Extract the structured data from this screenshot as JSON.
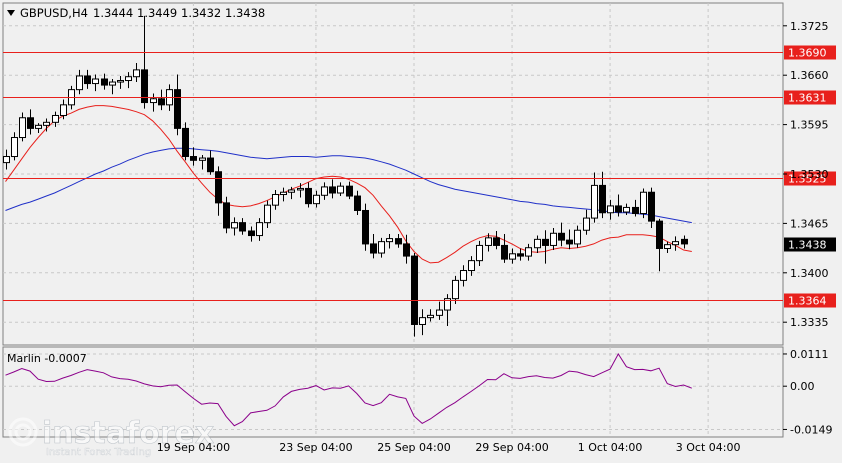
{
  "header": {
    "symbol": "GBPUSD,H4",
    "open": "1.3444",
    "high": "1.3449",
    "low": "1.3432",
    "close": "1.3438"
  },
  "indicator": {
    "label": "Marlin -0.0007"
  },
  "watermark": {
    "text": "instaforex",
    "tagline": "Instant Forex Trading"
  },
  "colors": {
    "background": "#f0f0f0",
    "grid": "#c8c8c8",
    "candle": "#000000",
    "level": "#e8201c",
    "ma_fast": "#e8201c",
    "ma_slow": "#2030c8",
    "marlin": "#8b008b",
    "border": "#808080"
  },
  "chart_data": [
    {
      "type": "candlestick",
      "title": "GBPUSD,H4",
      "ylim": [
        1.3305,
        1.3755
      ],
      "y_ticks": [
        "1.3725",
        "1.3660",
        "1.3595",
        "1.3530",
        "1.3465",
        "1.3400",
        "1.3335"
      ],
      "x_ticks": [
        "19 Sep 04:00",
        "23 Sep 04:00",
        "25 Sep 04:00",
        "29 Sep 04:00",
        "1 Oct 04:00",
        "3 Oct 04:00"
      ],
      "price_label": "1.3438",
      "levels": [
        {
          "value": 1.369,
          "label": "1.3690"
        },
        {
          "value": 1.3631,
          "label": "1.3631"
        },
        {
          "value": 1.3525,
          "label": "1.3525"
        },
        {
          "value": 1.3364,
          "label": "1.3364"
        }
      ],
      "candles": [
        [
          1.3545,
          1.3562,
          1.3536,
          1.3553
        ],
        [
          1.3553,
          1.3585,
          1.3548,
          1.3578
        ],
        [
          1.3578,
          1.3611,
          1.3573,
          1.3604
        ],
        [
          1.3604,
          1.3615,
          1.3582,
          1.359
        ],
        [
          1.359,
          1.3597,
          1.3584,
          1.3594
        ],
        [
          1.3594,
          1.3603,
          1.3586,
          1.3598
        ],
        [
          1.3598,
          1.3612,
          1.3592,
          1.3607
        ],
        [
          1.3607,
          1.3628,
          1.3602,
          1.3621
        ],
        [
          1.3621,
          1.3646,
          1.3615,
          1.3641
        ],
        [
          1.3641,
          1.3667,
          1.3635,
          1.3659
        ],
        [
          1.3659,
          1.3667,
          1.3642,
          1.3649
        ],
        [
          1.3649,
          1.3661,
          1.3639,
          1.3655
        ],
        [
          1.3655,
          1.3662,
          1.3641,
          1.3647
        ],
        [
          1.3647,
          1.3655,
          1.3635,
          1.3651
        ],
        [
          1.3651,
          1.3659,
          1.3642,
          1.3653
        ],
        [
          1.3653,
          1.3664,
          1.3643,
          1.3658
        ],
        [
          1.3658,
          1.3676,
          1.3651,
          1.3667
        ],
        [
          1.3667,
          1.3738,
          1.3616,
          1.3624
        ],
        [
          1.3624,
          1.3636,
          1.3612,
          1.3629
        ],
        [
          1.3629,
          1.3641,
          1.3614,
          1.3621
        ],
        [
          1.3621,
          1.3648,
          1.3613,
          1.3641
        ],
        [
          1.3641,
          1.3661,
          1.3581,
          1.359
        ],
        [
          1.359,
          1.3598,
          1.3548,
          1.3553
        ],
        [
          1.3553,
          1.3565,
          1.3541,
          1.3548
        ],
        [
          1.3548,
          1.3555,
          1.3536,
          1.3551
        ],
        [
          1.3551,
          1.3561,
          1.3529,
          1.3533
        ],
        [
          1.3533,
          1.354,
          1.3475,
          1.3492
        ],
        [
          1.3492,
          1.35,
          1.3452,
          1.3459
        ],
        [
          1.3459,
          1.3473,
          1.3449,
          1.3466
        ],
        [
          1.3466,
          1.3472,
          1.345,
          1.3455
        ],
        [
          1.3455,
          1.3461,
          1.3441,
          1.3449
        ],
        [
          1.3449,
          1.3472,
          1.3442,
          1.3466
        ],
        [
          1.3466,
          1.3495,
          1.3459,
          1.3489
        ],
        [
          1.3489,
          1.3509,
          1.3483,
          1.3503
        ],
        [
          1.3503,
          1.3512,
          1.3494,
          1.3506
        ],
        [
          1.3506,
          1.3513,
          1.3497,
          1.3509
        ],
        [
          1.3509,
          1.3518,
          1.3499,
          1.3511
        ],
        [
          1.3511,
          1.3519,
          1.3486,
          1.3491
        ],
        [
          1.3491,
          1.3508,
          1.3486,
          1.3502
        ],
        [
          1.3502,
          1.3519,
          1.3496,
          1.3513
        ],
        [
          1.3513,
          1.3523,
          1.3498,
          1.3505
        ],
        [
          1.3505,
          1.3519,
          1.3501,
          1.3514
        ],
        [
          1.3514,
          1.352,
          1.3497,
          1.3501
        ],
        [
          1.3501,
          1.3508,
          1.3476,
          1.3482
        ],
        [
          1.3482,
          1.3491,
          1.3429,
          1.3438
        ],
        [
          1.3438,
          1.3451,
          1.3419,
          1.3426
        ],
        [
          1.3426,
          1.3446,
          1.342,
          1.3441
        ],
        [
          1.3441,
          1.3451,
          1.3432,
          1.3445
        ],
        [
          1.3445,
          1.3451,
          1.3433,
          1.3438
        ],
        [
          1.3438,
          1.345,
          1.3412,
          1.3422
        ],
        [
          1.3422,
          1.3426,
          1.3316,
          1.3332
        ],
        [
          1.3332,
          1.3352,
          1.3318,
          1.3341
        ],
        [
          1.3341,
          1.3352,
          1.3336,
          1.3344
        ],
        [
          1.3344,
          1.3362,
          1.3338,
          1.3351
        ],
        [
          1.3351,
          1.3372,
          1.333,
          1.3366
        ],
        [
          1.3366,
          1.3396,
          1.3359,
          1.339
        ],
        [
          1.339,
          1.341,
          1.3382,
          1.3403
        ],
        [
          1.3403,
          1.3422,
          1.3396,
          1.3416
        ],
        [
          1.3416,
          1.3442,
          1.3409,
          1.3436
        ],
        [
          1.3436,
          1.3452,
          1.3428,
          1.3446
        ],
        [
          1.3446,
          1.3455,
          1.3431,
          1.3436
        ],
        [
          1.3436,
          1.3451,
          1.3413,
          1.3418
        ],
        [
          1.3418,
          1.3432,
          1.3412,
          1.3425
        ],
        [
          1.3425,
          1.3432,
          1.3416,
          1.3422
        ],
        [
          1.3422,
          1.3438,
          1.3416,
          1.3433
        ],
        [
          1.3433,
          1.3449,
          1.3426,
          1.3444
        ],
        [
          1.3444,
          1.3456,
          1.3412,
          1.3436
        ],
        [
          1.3436,
          1.3459,
          1.343,
          1.3452
        ],
        [
          1.3452,
          1.3466,
          1.3435,
          1.3443
        ],
        [
          1.3443,
          1.3457,
          1.3431,
          1.3438
        ],
        [
          1.3438,
          1.3462,
          1.3433,
          1.3456
        ],
        [
          1.3456,
          1.3483,
          1.345,
          1.3472
        ],
        [
          1.3472,
          1.3532,
          1.3466,
          1.3515
        ],
        [
          1.3515,
          1.3533,
          1.3472,
          1.3479
        ],
        [
          1.3479,
          1.3496,
          1.347,
          1.3488
        ],
        [
          1.3488,
          1.3503,
          1.3474,
          1.348
        ],
        [
          1.348,
          1.3491,
          1.3476,
          1.3486
        ],
        [
          1.3486,
          1.3496,
          1.3474,
          1.3478
        ],
        [
          1.3478,
          1.3511,
          1.3472,
          1.3506
        ],
        [
          1.3506,
          1.3512,
          1.3459,
          1.3468
        ],
        [
          1.3468,
          1.3471,
          1.3402,
          1.3432
        ],
        [
          1.3432,
          1.3441,
          1.3426,
          1.3437
        ],
        [
          1.3437,
          1.3448,
          1.3429,
          1.3441
        ],
        [
          1.3444,
          1.3449,
          1.3432,
          1.3438
        ]
      ],
      "ma_fast": [
        1.352,
        1.3535,
        1.355,
        1.3565,
        1.3578,
        1.359,
        1.36,
        1.3606,
        1.361,
        1.3615,
        1.3618,
        1.362,
        1.362,
        1.3619,
        1.3617,
        1.3615,
        1.3612,
        1.3608,
        1.36,
        1.3589,
        1.3576,
        1.356,
        1.3546,
        1.3531,
        1.3518,
        1.3506,
        1.3497,
        1.349,
        1.3488,
        1.3487,
        1.3488,
        1.3491,
        1.3495,
        1.35,
        1.3505,
        1.351,
        1.3514,
        1.3519,
        1.3524,
        1.3526,
        1.3527,
        1.3526,
        1.3523,
        1.3518,
        1.3512,
        1.3502,
        1.3488,
        1.3475,
        1.346,
        1.3442,
        1.3428,
        1.3418,
        1.3413,
        1.3414,
        1.342,
        1.3427,
        1.3435,
        1.3441,
        1.3446,
        1.3449,
        1.3448,
        1.3443,
        1.3438,
        1.3432,
        1.3428,
        1.3427,
        1.3428,
        1.3431,
        1.3433,
        1.3432,
        1.3433,
        1.3435,
        1.3438,
        1.3443,
        1.3446,
        1.3447,
        1.345,
        1.345,
        1.345,
        1.3449,
        1.3447,
        1.3441,
        1.3436,
        1.343,
        1.3428
      ],
      "ma_slow": [
        1.3482,
        1.3486,
        1.349,
        1.3493,
        1.3497,
        1.3501,
        1.3505,
        1.351,
        1.3515,
        1.352,
        1.3525,
        1.353,
        1.3534,
        1.3539,
        1.3543,
        1.3548,
        1.3552,
        1.3556,
        1.3559,
        1.3561,
        1.3563,
        1.3564,
        1.3564,
        1.3563,
        1.3562,
        1.3561,
        1.356,
        1.3558,
        1.3556,
        1.3554,
        1.3552,
        1.3551,
        1.355,
        1.3551,
        1.3552,
        1.3553,
        1.3553,
        1.3553,
        1.3552,
        1.3553,
        1.3554,
        1.3554,
        1.3553,
        1.3552,
        1.3551,
        1.3549,
        1.3546,
        1.3543,
        1.3539,
        1.3535,
        1.353,
        1.3525,
        1.352,
        1.3516,
        1.3513,
        1.351,
        1.3508,
        1.3506,
        1.3504,
        1.3502,
        1.35,
        1.3498,
        1.3496,
        1.3494,
        1.3493,
        1.3491,
        1.349,
        1.3488,
        1.3487,
        1.3486,
        1.3485,
        1.3484,
        1.3483,
        1.3482,
        1.348,
        1.3479,
        1.3479,
        1.3478,
        1.3477,
        1.3476,
        1.3474,
        1.3472,
        1.347,
        1.3468,
        1.3466
      ]
    },
    {
      "type": "line",
      "title": "Marlin -0.0007",
      "ylim": [
        -0.0175,
        0.0135
      ],
      "y_ticks": [
        "0.0111",
        "0.00",
        "-0.0149"
      ],
      "values": [
        0.0038,
        0.0049,
        0.0061,
        0.0052,
        0.0024,
        0.0016,
        0.0017,
        0.0028,
        0.0037,
        0.0048,
        0.0057,
        0.0052,
        0.0046,
        0.0032,
        0.0026,
        0.0024,
        0.0018,
        0.0008,
        0.0001,
        -0.0002,
        0.0003,
        0.0004,
        -0.0019,
        -0.0042,
        -0.0062,
        -0.0058,
        -0.006,
        -0.0104,
        -0.0136,
        -0.0122,
        -0.0092,
        -0.0087,
        -0.0083,
        -0.0068,
        -0.0037,
        -0.0018,
        -0.0011,
        -0.0007,
        0.0002,
        -0.0013,
        -0.0006,
        -0.0007,
        0.0001,
        -0.0025,
        -0.0058,
        -0.0067,
        -0.0057,
        -0.0028,
        -0.0037,
        -0.0042,
        -0.0103,
        -0.0128,
        -0.0113,
        -0.0093,
        -0.0073,
        -0.0057,
        -0.0037,
        -0.0018,
        0.0002,
        0.0023,
        0.0022,
        0.0043,
        0.0029,
        0.0027,
        0.0033,
        0.0036,
        0.003,
        0.0028,
        0.0037,
        0.0052,
        0.0049,
        0.004,
        0.0033,
        0.0046,
        0.0059,
        0.0111,
        0.0067,
        0.0057,
        0.0058,
        0.0053,
        0.0062,
        0.0009,
        -0.0001,
        0.0004,
        -0.0007
      ]
    }
  ]
}
